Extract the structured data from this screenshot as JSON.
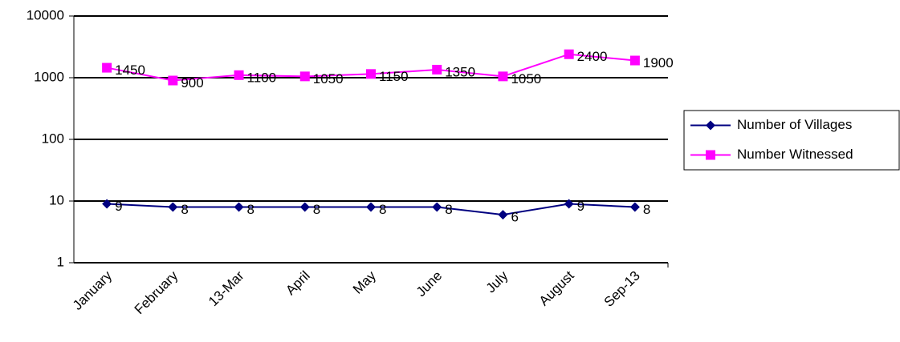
{
  "chart_data": {
    "type": "line",
    "categories": [
      "January",
      "February",
      "13-Mar",
      "April",
      "May",
      "June",
      "July",
      "August",
      "Sep-13"
    ],
    "series": [
      {
        "name": "Number of Villages",
        "color": "#000080",
        "marker": "diamond",
        "values": [
          9,
          8,
          8,
          8,
          8,
          8,
          6,
          9,
          8
        ]
      },
      {
        "name": "Number Witnessed",
        "color": "#ff00ff",
        "marker": "square",
        "values": [
          1450,
          900,
          1100,
          1050,
          1150,
          1350,
          1050,
          2400,
          1900
        ]
      }
    ],
    "ylim": [
      1,
      10000
    ],
    "yticks": [
      1,
      10,
      100,
      1000,
      10000
    ],
    "log_y": true,
    "grid": true,
    "data_labels": true,
    "legend": "right"
  }
}
